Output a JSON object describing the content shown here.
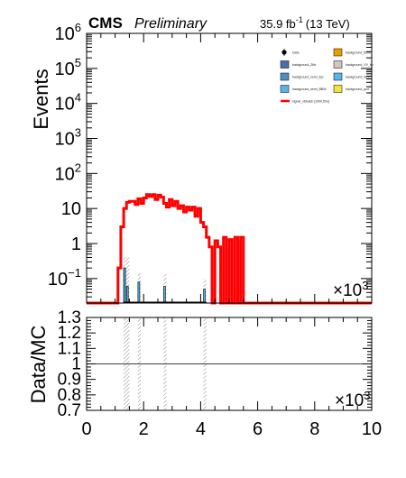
{
  "header": {
    "experiment": "CMS",
    "status": "Preliminary",
    "lumi_value": "35.9 fb",
    "lumi_exp": "-1",
    "lumi_energy": "(13 TeV)"
  },
  "chart_data": [
    {
      "type": "histogram",
      "log_y": true,
      "xlim": [
        0,
        10000
      ],
      "ylim": [
        0.02,
        1000000
      ],
      "ylabel": "Events",
      "x_multiplier": "×10",
      "x_multiplier_exp": "3",
      "y_ticks": [
        {
          "value": 0.1,
          "base": "10",
          "exp": "−1"
        },
        {
          "value": 1,
          "label": "1"
        },
        {
          "value": 10,
          "label": "10"
        },
        {
          "value": 100,
          "base": "10",
          "exp": "2"
        },
        {
          "value": 1000,
          "base": "10",
          "exp": "3"
        },
        {
          "value": 10000,
          "base": "10",
          "exp": "4"
        },
        {
          "value": 100000,
          "base": "10",
          "exp": "5"
        },
        {
          "value": 1000000,
          "base": "10",
          "exp": "6"
        }
      ],
      "legend": [
        {
          "label": "Data",
          "kind": "marker",
          "color": "#000000"
        },
        {
          "label": "background_50ns",
          "kind": "box",
          "color": "#e69f00"
        },
        {
          "label": "background_Zbb",
          "kind": "box",
          "color": "#4a6fa5"
        },
        {
          "label": "background_VV_bb",
          "kind": "box",
          "color": "#d4c4c4"
        },
        {
          "label": "background_semi_top",
          "kind": "box",
          "color": "#4f8fc0"
        },
        {
          "label": "background_Wbb",
          "kind": "box",
          "color": "#56b4e9"
        },
        {
          "label": "background_semi_BBW",
          "kind": "box",
          "color": "#5ab3e3"
        },
        {
          "label": "background_qcd",
          "kind": "box",
          "color": "#f0e442"
        },
        {
          "label": "signal_xbbutch [1000,50u]",
          "kind": "line",
          "color": "#ff0000"
        }
      ],
      "signal": {
        "name": "signal_xbbutch [1000,50u]",
        "color": "#ff0000",
        "bin_edges": [
          1100,
          1200,
          1300,
          1400,
          1500,
          1600,
          1700,
          1800,
          1900,
          2000,
          2100,
          2200,
          2300,
          2400,
          2500,
          2600,
          2700,
          2800,
          2900,
          3000,
          3100,
          3200,
          3300,
          3400,
          3500,
          3600,
          3700,
          3800,
          3900,
          4000,
          4100,
          4200,
          4300,
          4400,
          4500,
          4600,
          4700,
          4800,
          4900,
          5000,
          5100,
          5200,
          5300,
          5400,
          5500
        ],
        "values": [
          0.2,
          3,
          10,
          15,
          16,
          16,
          13,
          19,
          14,
          20,
          25,
          22,
          25,
          18,
          24,
          21,
          14,
          11,
          18,
          12,
          16,
          10,
          12,
          8,
          11,
          9,
          11,
          6,
          10,
          4,
          3,
          1.5,
          0.8,
          0.02,
          1.2,
          0.8,
          0.02,
          1.5,
          0.02,
          1.3,
          0.02,
          1.5,
          0.02,
          1.5
        ]
      },
      "backgrounds": [
        {
          "name": "background_qcd",
          "color": "#f0e442",
          "bins": [
            {
              "x0": 1300,
              "x1": 1400,
              "value": 0.2
            }
          ]
        },
        {
          "name": "background_Wbb",
          "color": "#56b4e9",
          "bins": [
            {
              "x0": 1300,
              "x1": 1400,
              "value": 0.2
            },
            {
              "x0": 1400,
              "x1": 1500,
              "value": 0.06
            },
            {
              "x0": 1800,
              "x1": 1900,
              "value": 0.08
            },
            {
              "x0": 2700,
              "x1": 2800,
              "value": 0.06
            },
            {
              "x0": 4100,
              "x1": 4200,
              "value": 0.05
            }
          ]
        }
      ],
      "uncertainty_bins": [
        {
          "x0": 1300,
          "x1": 1500,
          "value": 0.4
        },
        {
          "x0": 1800,
          "x1": 1900,
          "value": 0.14
        },
        {
          "x0": 2700,
          "x1": 2800,
          "value": 0.14
        },
        {
          "x0": 4100,
          "x1": 4200,
          "value": 0.1
        }
      ]
    },
    {
      "type": "ratio",
      "xlim": [
        0,
        10000
      ],
      "ylim": [
        0.7,
        1.3
      ],
      "xlabel": "",
      "ylabel": "Data/MC",
      "reference_line": 1.0,
      "x_multiplier": "×10",
      "x_multiplier_exp": "3",
      "y_ticks": [
        "1.3",
        "1.2",
        "1.1",
        "1",
        "0.9",
        "0.8",
        "0.7"
      ],
      "x_ticks": [
        "0",
        "2",
        "4",
        "6",
        "8",
        "10"
      ],
      "uncertainty_bins": [
        {
          "x0": 1300,
          "x1": 1500
        },
        {
          "x0": 1800,
          "x1": 1900
        },
        {
          "x0": 2700,
          "x1": 2800
        },
        {
          "x0": 4100,
          "x1": 4200
        }
      ]
    }
  ]
}
